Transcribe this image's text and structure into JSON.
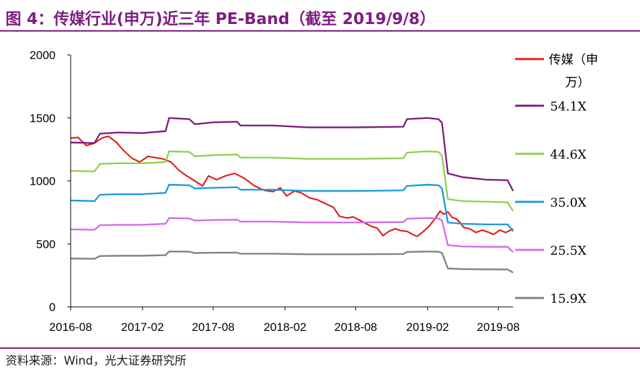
{
  "header": {
    "title": "图 4：传媒行业(申万)近三年 PE-Band（截至 2019/9/8）"
  },
  "footer": {
    "source": "资料来源：Wind，光大证券研究所"
  },
  "chart_data": {
    "type": "line",
    "title": "图 4：传媒行业(申万)近三年 PE-Band（截至 2019/9/8）",
    "xlabel": "",
    "ylabel": "",
    "ylim": [
      0,
      2000
    ],
    "y_ticks": [
      "0",
      "500",
      "1000",
      "1500",
      "2000"
    ],
    "x_ticks": [
      "2016-08",
      "2017-02",
      "2017-08",
      "2018-02",
      "2018-08",
      "2019-02",
      "2019-08"
    ],
    "x_tick_dates": [
      "2016-08-01",
      "2017-02-01",
      "2017-08-01",
      "2018-02-01",
      "2018-08-01",
      "2019-02-01",
      "2019-08-01"
    ],
    "x_range": [
      "2016-08-01",
      "2019-09-08"
    ],
    "grid": false,
    "legend_position": "right",
    "series": [
      {
        "name": "传媒（申万）",
        "color": "#e0201b",
        "points": [
          [
            "2016-08-01",
            1340
          ],
          [
            "2016-08-20",
            1345
          ],
          [
            "2016-09-10",
            1280
          ],
          [
            "2016-10-01",
            1300
          ],
          [
            "2016-10-20",
            1340
          ],
          [
            "2016-11-05",
            1355
          ],
          [
            "2016-11-25",
            1310
          ],
          [
            "2016-12-15",
            1240
          ],
          [
            "2017-01-05",
            1180
          ],
          [
            "2017-01-25",
            1150
          ],
          [
            "2017-02-15",
            1195
          ],
          [
            "2017-03-05",
            1185
          ],
          [
            "2017-03-25",
            1175
          ],
          [
            "2017-04-15",
            1150
          ],
          [
            "2017-05-05",
            1085
          ],
          [
            "2017-05-25",
            1040
          ],
          [
            "2017-06-15",
            1000
          ],
          [
            "2017-07-05",
            960
          ],
          [
            "2017-07-20",
            1040
          ],
          [
            "2017-08-10",
            1010
          ],
          [
            "2017-09-01",
            1040
          ],
          [
            "2017-09-25",
            1060
          ],
          [
            "2017-10-20",
            1020
          ],
          [
            "2017-11-15",
            960
          ],
          [
            "2017-12-10",
            925
          ],
          [
            "2018-01-01",
            915
          ],
          [
            "2018-01-20",
            945
          ],
          [
            "2018-02-05",
            880
          ],
          [
            "2018-02-25",
            920
          ],
          [
            "2018-03-15",
            905
          ],
          [
            "2018-04-05",
            865
          ],
          [
            "2018-04-25",
            850
          ],
          [
            "2018-05-15",
            820
          ],
          [
            "2018-06-05",
            790
          ],
          [
            "2018-06-20",
            720
          ],
          [
            "2018-07-10",
            705
          ],
          [
            "2018-07-25",
            715
          ],
          [
            "2018-08-10",
            690
          ],
          [
            "2018-08-25",
            665
          ],
          [
            "2018-09-10",
            640
          ],
          [
            "2018-09-25",
            625
          ],
          [
            "2018-10-10",
            565
          ],
          [
            "2018-10-25",
            600
          ],
          [
            "2018-11-10",
            620
          ],
          [
            "2018-11-25",
            605
          ],
          [
            "2018-12-10",
            600
          ],
          [
            "2018-12-25",
            575
          ],
          [
            "2019-01-05",
            560
          ],
          [
            "2019-01-20",
            595
          ],
          [
            "2019-02-05",
            640
          ],
          [
            "2019-02-20",
            700
          ],
          [
            "2019-03-05",
            760
          ],
          [
            "2019-03-15",
            735
          ],
          [
            "2019-03-25",
            755
          ],
          [
            "2019-04-05",
            710
          ],
          [
            "2019-04-15",
            700
          ],
          [
            "2019-04-25",
            670
          ],
          [
            "2019-05-05",
            630
          ],
          [
            "2019-05-20",
            620
          ],
          [
            "2019-06-05",
            590
          ],
          [
            "2019-06-20",
            610
          ],
          [
            "2019-07-05",
            595
          ],
          [
            "2019-07-20",
            575
          ],
          [
            "2019-08-05",
            610
          ],
          [
            "2019-08-20",
            590
          ],
          [
            "2019-09-08",
            620
          ]
        ]
      },
      {
        "name": "54.1X",
        "color": "#7b1f7e",
        "points": [
          [
            "2016-08-01",
            1305
          ],
          [
            "2016-10-01",
            1300
          ],
          [
            "2016-10-15",
            1375
          ],
          [
            "2016-12-01",
            1385
          ],
          [
            "2017-02-01",
            1380
          ],
          [
            "2017-04-01",
            1395
          ],
          [
            "2017-04-10",
            1500
          ],
          [
            "2017-06-01",
            1490
          ],
          [
            "2017-06-15",
            1450
          ],
          [
            "2017-08-01",
            1465
          ],
          [
            "2017-10-01",
            1470
          ],
          [
            "2017-10-10",
            1440
          ],
          [
            "2018-01-01",
            1440
          ],
          [
            "2018-04-01",
            1425
          ],
          [
            "2018-08-01",
            1425
          ],
          [
            "2018-12-01",
            1430
          ],
          [
            "2018-12-10",
            1490
          ],
          [
            "2019-02-01",
            1500
          ],
          [
            "2019-03-01",
            1490
          ],
          [
            "2019-03-10",
            1460
          ],
          [
            "2019-03-25",
            1060
          ],
          [
            "2019-05-01",
            1030
          ],
          [
            "2019-07-01",
            1010
          ],
          [
            "2019-08-25",
            1005
          ],
          [
            "2019-09-08",
            920
          ]
        ]
      },
      {
        "name": "44.6X",
        "color": "#8fd14f",
        "points": [
          [
            "2016-08-01",
            1080
          ],
          [
            "2016-10-01",
            1075
          ],
          [
            "2016-10-15",
            1135
          ],
          [
            "2016-12-01",
            1140
          ],
          [
            "2017-02-01",
            1140
          ],
          [
            "2017-04-01",
            1150
          ],
          [
            "2017-04-10",
            1235
          ],
          [
            "2017-06-01",
            1230
          ],
          [
            "2017-06-15",
            1195
          ],
          [
            "2017-08-01",
            1205
          ],
          [
            "2017-10-01",
            1210
          ],
          [
            "2017-10-10",
            1185
          ],
          [
            "2018-01-01",
            1185
          ],
          [
            "2018-04-01",
            1175
          ],
          [
            "2018-08-01",
            1175
          ],
          [
            "2018-12-01",
            1180
          ],
          [
            "2018-12-10",
            1225
          ],
          [
            "2019-02-01",
            1235
          ],
          [
            "2019-03-01",
            1230
          ],
          [
            "2019-03-10",
            1200
          ],
          [
            "2019-03-25",
            855
          ],
          [
            "2019-05-01",
            840
          ],
          [
            "2019-07-01",
            835
          ],
          [
            "2019-08-25",
            830
          ],
          [
            "2019-09-08",
            760
          ]
        ]
      },
      {
        "name": "35.0X",
        "color": "#1b9be0",
        "points": [
          [
            "2016-08-01",
            845
          ],
          [
            "2016-10-01",
            840
          ],
          [
            "2016-10-15",
            890
          ],
          [
            "2016-12-01",
            895
          ],
          [
            "2017-02-01",
            895
          ],
          [
            "2017-04-01",
            905
          ],
          [
            "2017-04-10",
            970
          ],
          [
            "2017-06-01",
            965
          ],
          [
            "2017-06-15",
            940
          ],
          [
            "2017-08-01",
            945
          ],
          [
            "2017-10-01",
            950
          ],
          [
            "2017-10-10",
            930
          ],
          [
            "2018-01-01",
            930
          ],
          [
            "2018-04-01",
            920
          ],
          [
            "2018-08-01",
            920
          ],
          [
            "2018-12-01",
            925
          ],
          [
            "2018-12-10",
            960
          ],
          [
            "2019-02-01",
            970
          ],
          [
            "2019-03-01",
            965
          ],
          [
            "2019-03-10",
            940
          ],
          [
            "2019-03-25",
            670
          ],
          [
            "2019-05-01",
            660
          ],
          [
            "2019-07-01",
            655
          ],
          [
            "2019-08-25",
            655
          ],
          [
            "2019-09-08",
            600
          ]
        ]
      },
      {
        "name": "25.5X",
        "color": "#d36be8",
        "points": [
          [
            "2016-08-01",
            615
          ],
          [
            "2016-10-01",
            612
          ],
          [
            "2016-10-15",
            648
          ],
          [
            "2016-12-01",
            652
          ],
          [
            "2017-02-01",
            652
          ],
          [
            "2017-04-01",
            660
          ],
          [
            "2017-04-10",
            705
          ],
          [
            "2017-06-01",
            702
          ],
          [
            "2017-06-15",
            685
          ],
          [
            "2017-08-01",
            690
          ],
          [
            "2017-10-01",
            692
          ],
          [
            "2017-10-10",
            677
          ],
          [
            "2018-01-01",
            677
          ],
          [
            "2018-04-01",
            670
          ],
          [
            "2018-08-01",
            670
          ],
          [
            "2018-12-01",
            673
          ],
          [
            "2018-12-10",
            700
          ],
          [
            "2019-02-01",
            705
          ],
          [
            "2019-03-01",
            702
          ],
          [
            "2019-03-10",
            685
          ],
          [
            "2019-03-25",
            490
          ],
          [
            "2019-05-01",
            480
          ],
          [
            "2019-07-01",
            477
          ],
          [
            "2019-08-25",
            477
          ],
          [
            "2019-09-08",
            435
          ]
        ]
      },
      {
        "name": "15.9X",
        "color": "#808080",
        "points": [
          [
            "2016-08-01",
            384
          ],
          [
            "2016-10-01",
            382
          ],
          [
            "2016-10-15",
            404
          ],
          [
            "2016-12-01",
            406
          ],
          [
            "2017-02-01",
            406
          ],
          [
            "2017-04-01",
            411
          ],
          [
            "2017-04-10",
            440
          ],
          [
            "2017-06-01",
            438
          ],
          [
            "2017-06-15",
            427
          ],
          [
            "2017-08-01",
            430
          ],
          [
            "2017-10-01",
            431
          ],
          [
            "2017-10-10",
            422
          ],
          [
            "2018-01-01",
            422
          ],
          [
            "2018-04-01",
            418
          ],
          [
            "2018-08-01",
            418
          ],
          [
            "2018-12-01",
            420
          ],
          [
            "2018-12-10",
            436
          ],
          [
            "2019-02-01",
            440
          ],
          [
            "2019-03-01",
            438
          ],
          [
            "2019-03-10",
            427
          ],
          [
            "2019-03-25",
            305
          ],
          [
            "2019-05-01",
            300
          ],
          [
            "2019-07-01",
            298
          ],
          [
            "2019-08-25",
            297
          ],
          [
            "2019-09-08",
            272
          ]
        ]
      }
    ]
  }
}
